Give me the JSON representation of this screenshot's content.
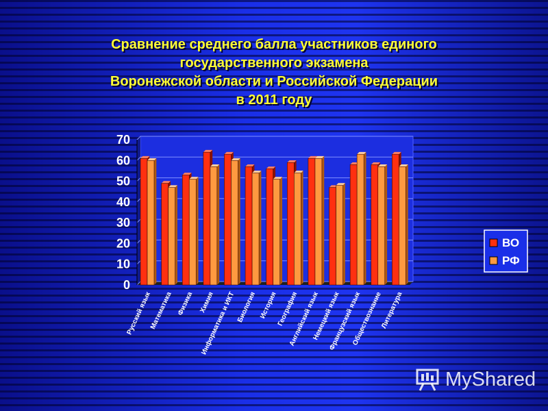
{
  "title_lines": [
    "Сравнение среднего балла участников единого",
    "государственного экзамена",
    "Воронежской области и Российской Федерации",
    "в 2011 году"
  ],
  "watermark": "MyShared",
  "colors": {
    "series_vo": "#ff3010",
    "series_rf": "#ff9a40",
    "background": "#1a2fe8",
    "title": "#ffff33"
  },
  "chart_data": {
    "type": "bar",
    "title": "Сравнение среднего балла участников единого государственного экзамена Воронежской области и Российской Федерации в 2011 году",
    "categories": [
      "Русский язык",
      "Математика",
      "Физика",
      "Химия",
      "Информатика и ИКТ",
      "Биология",
      "История",
      "География",
      "Английский язык",
      "Немецкий язык",
      "Французский язык",
      "Обществознание",
      "Литература"
    ],
    "series": [
      {
        "name": "ВО",
        "values": [
          61,
          49,
          53,
          64,
          63,
          57,
          56,
          59,
          61,
          47,
          58,
          58,
          63
        ]
      },
      {
        "name": "РФ",
        "values": [
          60,
          47,
          51,
          57,
          60,
          54,
          51,
          54,
          61,
          48,
          63,
          57,
          57
        ]
      }
    ],
    "ylim": [
      0,
      70
    ],
    "yticks": [
      "0",
      "10",
      "20",
      "30",
      "40",
      "50",
      "60",
      "70"
    ],
    "grid": true,
    "legend": "right"
  }
}
